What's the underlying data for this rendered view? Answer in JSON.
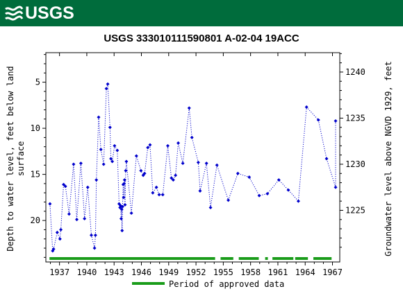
{
  "header": {
    "logo_text": "USGS",
    "logo_icon": "usgs-wave-icon",
    "brand_color": "#006c3c"
  },
  "chart_data": {
    "type": "scatter",
    "title": "USGS 333010111590801 A-02-04 19ACC",
    "ylabel_left": "Depth to water level, feet below land surface",
    "ylabel_left_lines": [
      "Depth to water level, feet below land",
      "surface"
    ],
    "ylabel_right": "Groundwater level above NGVD 1929, feet",
    "x_tick_labels": [
      "1937",
      "1940",
      "1943",
      "1946",
      "1949",
      "1952",
      "1955",
      "1958",
      "1961",
      "1964",
      "1967"
    ],
    "x_ticks": [
      1937,
      1940,
      1943,
      1946,
      1949,
      1952,
      1955,
      1958,
      1961,
      1964,
      1967
    ],
    "xlim": [
      1935.5,
      1967.8
    ],
    "y_left_tick_labels": [
      "5",
      "10",
      "15",
      "20"
    ],
    "y_left_ticks": [
      5,
      10,
      15,
      20
    ],
    "y_left_lim": [
      1.8,
      24.5
    ],
    "y_left_inverted": true,
    "y_right_tick_labels": [
      "1225",
      "1230",
      "1235",
      "1240"
    ],
    "y_right_ticks": [
      1225,
      1230,
      1235,
      1240
    ],
    "series_color": "#0000cc",
    "line_style": "dotted",
    "grid": false,
    "legend": {
      "label": "Period of approved data",
      "color": "#1a9c1a",
      "position": "bottom"
    },
    "approved_periods": [
      [
        1935.9,
        1954.1
      ],
      [
        1954.7,
        1956.1
      ],
      [
        1956.7,
        1958.9
      ],
      [
        1959.6,
        1959.9
      ],
      [
        1960.4,
        1962.7
      ],
      [
        1962.9,
        1964.3
      ],
      [
        1964.9,
        1966.9
      ]
    ],
    "points": [
      [
        1935.95,
        18.2
      ],
      [
        1936.25,
        23.3
      ],
      [
        1936.35,
        23.1
      ],
      [
        1936.75,
        21.3
      ],
      [
        1937.05,
        22.0
      ],
      [
        1937.15,
        21.0
      ],
      [
        1937.45,
        16.1
      ],
      [
        1937.65,
        16.3
      ],
      [
        1938.05,
        19.3
      ],
      [
        1938.55,
        13.9
      ],
      [
        1938.9,
        19.9
      ],
      [
        1939.35,
        13.8
      ],
      [
        1939.75,
        19.8
      ],
      [
        1940.1,
        16.4
      ],
      [
        1940.5,
        21.6
      ],
      [
        1940.85,
        23.0
      ],
      [
        1940.95,
        21.6
      ],
      [
        1941.05,
        15.6
      ],
      [
        1941.3,
        8.8
      ],
      [
        1941.55,
        12.3
      ],
      [
        1941.85,
        13.9
      ],
      [
        1942.15,
        5.7
      ],
      [
        1942.3,
        5.2
      ],
      [
        1942.55,
        9.9
      ],
      [
        1942.65,
        13.3
      ],
      [
        1942.8,
        13.6
      ],
      [
        1943.05,
        11.9
      ],
      [
        1943.35,
        12.4
      ],
      [
        1943.55,
        18.2
      ],
      [
        1943.65,
        18.6
      ],
      [
        1943.72,
        18.4
      ],
      [
        1943.78,
        19.8
      ],
      [
        1943.84,
        18.8
      ],
      [
        1943.88,
        21.1
      ],
      [
        1943.93,
        18.5
      ],
      [
        1944.0,
        16.1
      ],
      [
        1944.05,
        17.5
      ],
      [
        1944.1,
        16.0
      ],
      [
        1944.15,
        15.6
      ],
      [
        1944.2,
        18.3
      ],
      [
        1944.28,
        14.6
      ],
      [
        1944.35,
        13.6
      ],
      [
        1944.9,
        19.2
      ],
      [
        1945.45,
        13.0
      ],
      [
        1945.95,
        14.6
      ],
      [
        1946.2,
        15.1
      ],
      [
        1946.35,
        14.9
      ],
      [
        1946.7,
        12.1
      ],
      [
        1946.95,
        11.8
      ],
      [
        1947.25,
        17.0
      ],
      [
        1947.65,
        16.4
      ],
      [
        1947.95,
        17.2
      ],
      [
        1948.35,
        17.2
      ],
      [
        1948.9,
        11.9
      ],
      [
        1949.3,
        15.4
      ],
      [
        1949.5,
        15.6
      ],
      [
        1949.75,
        15.1
      ],
      [
        1950.05,
        11.6
      ],
      [
        1950.55,
        13.8
      ],
      [
        1951.25,
        7.8
      ],
      [
        1951.55,
        11.0
      ],
      [
        1952.25,
        13.7
      ],
      [
        1952.45,
        16.8
      ],
      [
        1953.15,
        13.8
      ],
      [
        1953.6,
        18.6
      ],
      [
        1954.3,
        14.0
      ],
      [
        1955.55,
        17.8
      ],
      [
        1956.6,
        14.9
      ],
      [
        1957.85,
        15.3
      ],
      [
        1958.95,
        17.3
      ],
      [
        1959.85,
        17.1
      ],
      [
        1961.1,
        15.6
      ],
      [
        1962.15,
        16.7
      ],
      [
        1963.25,
        17.9
      ],
      [
        1964.15,
        7.7
      ],
      [
        1965.45,
        9.1
      ],
      [
        1966.35,
        13.3
      ],
      [
        1967.55,
        16.4
      ],
      [
        1968.5,
        9.2
      ]
    ]
  }
}
